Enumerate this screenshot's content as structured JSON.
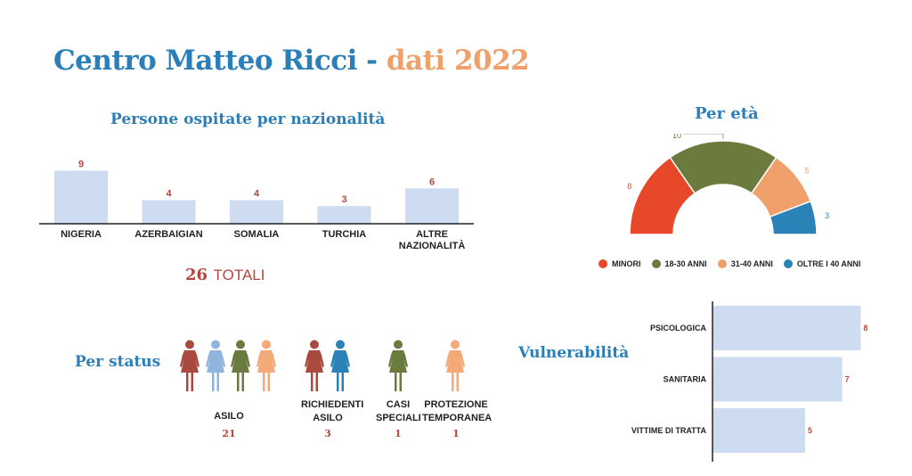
{
  "title": {
    "part1": "Centro Matteo Ricci",
    "sep": " - ",
    "part2": "dati 2022"
  },
  "totals": {
    "number": "26",
    "label": "TOTALI"
  },
  "colors": {
    "bar": "#cddcf0",
    "accent_blue": "#2b7fb8",
    "accent_orange": "#f0a06a",
    "value_red": "#b5483c",
    "minori": "#e8482a",
    "a18_30": "#6b7a3d",
    "a31_40": "#f0a06a",
    "oltre40": "#2b82b6",
    "fig_red": "#a84a3e",
    "fig_lightblue": "#8fb5df",
    "fig_green": "#6b7a3d",
    "fig_orange": "#f3a978",
    "fig_blue": "#2b82b6"
  },
  "chart_data": [
    {
      "type": "bar",
      "title": "Persone ospitate per nazionalità",
      "categories": [
        "NIGERIA",
        "AZERBAIGIAN",
        "SOMALIA",
        "TURCHIA",
        "ALTRE NAZIONALITÀ"
      ],
      "values": [
        9,
        4,
        4,
        3,
        6
      ]
    },
    {
      "type": "pie",
      "title": "Per età",
      "labels": [
        "MINORI",
        "18-30 ANNI",
        "31-40 ANNI",
        "OLTRE I 40 ANNI"
      ],
      "values": [
        8,
        10,
        5,
        3
      ],
      "legend": "bottom"
    },
    {
      "type": "bar",
      "title": "Vulnerabilità",
      "orientation": "horizontal",
      "categories": [
        "PSICOLOGICA",
        "SANITARIA",
        "VITTIME DI TRATTA"
      ],
      "values": [
        8,
        7,
        5
      ]
    },
    {
      "type": "table",
      "title": "Per status",
      "categories": [
        {
          "label_lines": [
            "ASILO"
          ],
          "value": "21",
          "figures": [
            "fig_red",
            "fig_lightblue",
            "fig_green",
            "fig_orange"
          ]
        },
        {
          "label_lines": [
            "RICHIEDENTI",
            "ASILO"
          ],
          "value": "3",
          "figures": [
            "fig_red",
            "fig_blue"
          ]
        },
        {
          "label_lines": [
            "CASI",
            "SPECIALI"
          ],
          "value": "1",
          "figures": [
            "fig_green"
          ]
        },
        {
          "label_lines": [
            "PROTEZIONE",
            "TEMPORANEA"
          ],
          "value": "1",
          "figures": [
            "fig_orange"
          ]
        }
      ]
    }
  ]
}
